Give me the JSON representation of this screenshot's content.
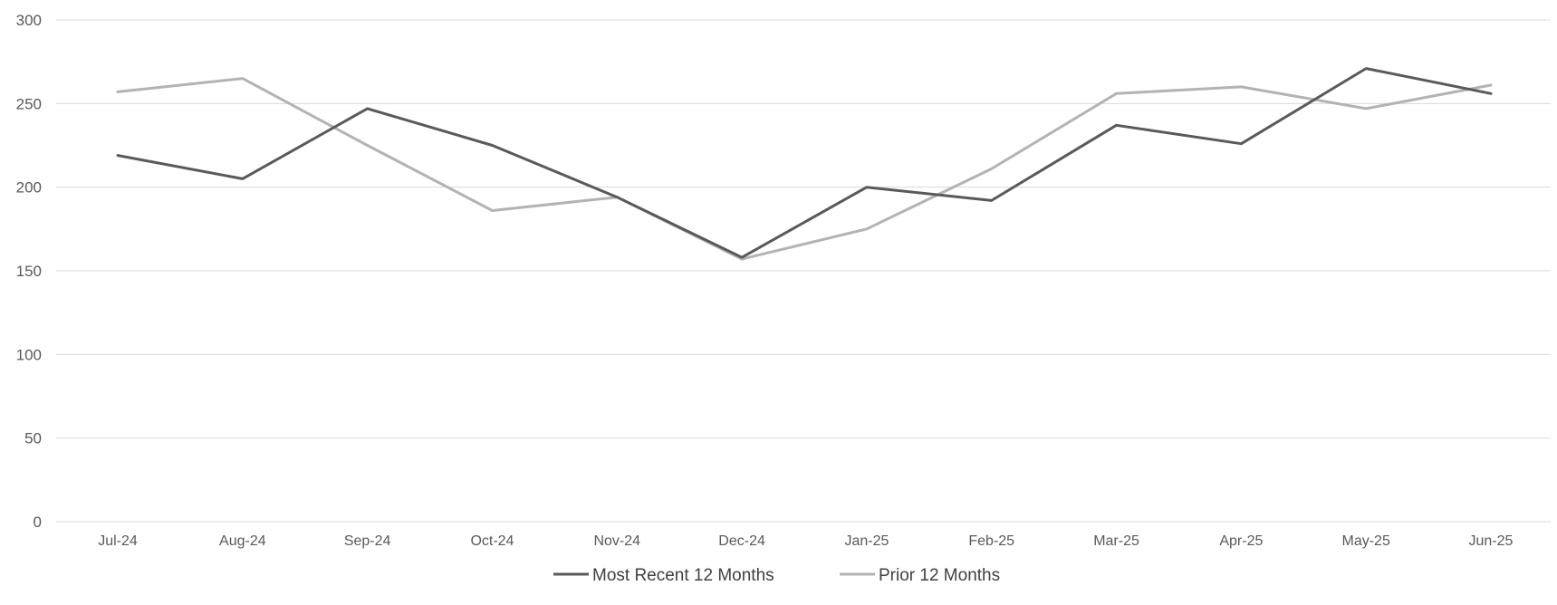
{
  "chart_data": {
    "type": "line",
    "title": "",
    "xlabel": "",
    "ylabel": "",
    "categories": [
      "Jul-24",
      "Aug-24",
      "Sep-24",
      "Oct-24",
      "Nov-24",
      "Dec-24",
      "Jan-25",
      "Feb-25",
      "Mar-25",
      "Apr-25",
      "May-25",
      "Jun-25"
    ],
    "ylim": [
      0,
      300
    ],
    "yticks": [
      0,
      50,
      100,
      150,
      200,
      250,
      300
    ],
    "grid": true,
    "legend_position": "bottom-center",
    "series": [
      {
        "name": "Most Recent 12 Months",
        "color": "#595959",
        "values": [
          219,
          205,
          247,
          225,
          194,
          158,
          200,
          192,
          237,
          226,
          271,
          256
        ]
      },
      {
        "name": "Prior 12 Months",
        "color": "#b3b3b3",
        "values": [
          257,
          265,
          225,
          186,
          194,
          157,
          175,
          211,
          256,
          260,
          247,
          261
        ]
      }
    ]
  }
}
